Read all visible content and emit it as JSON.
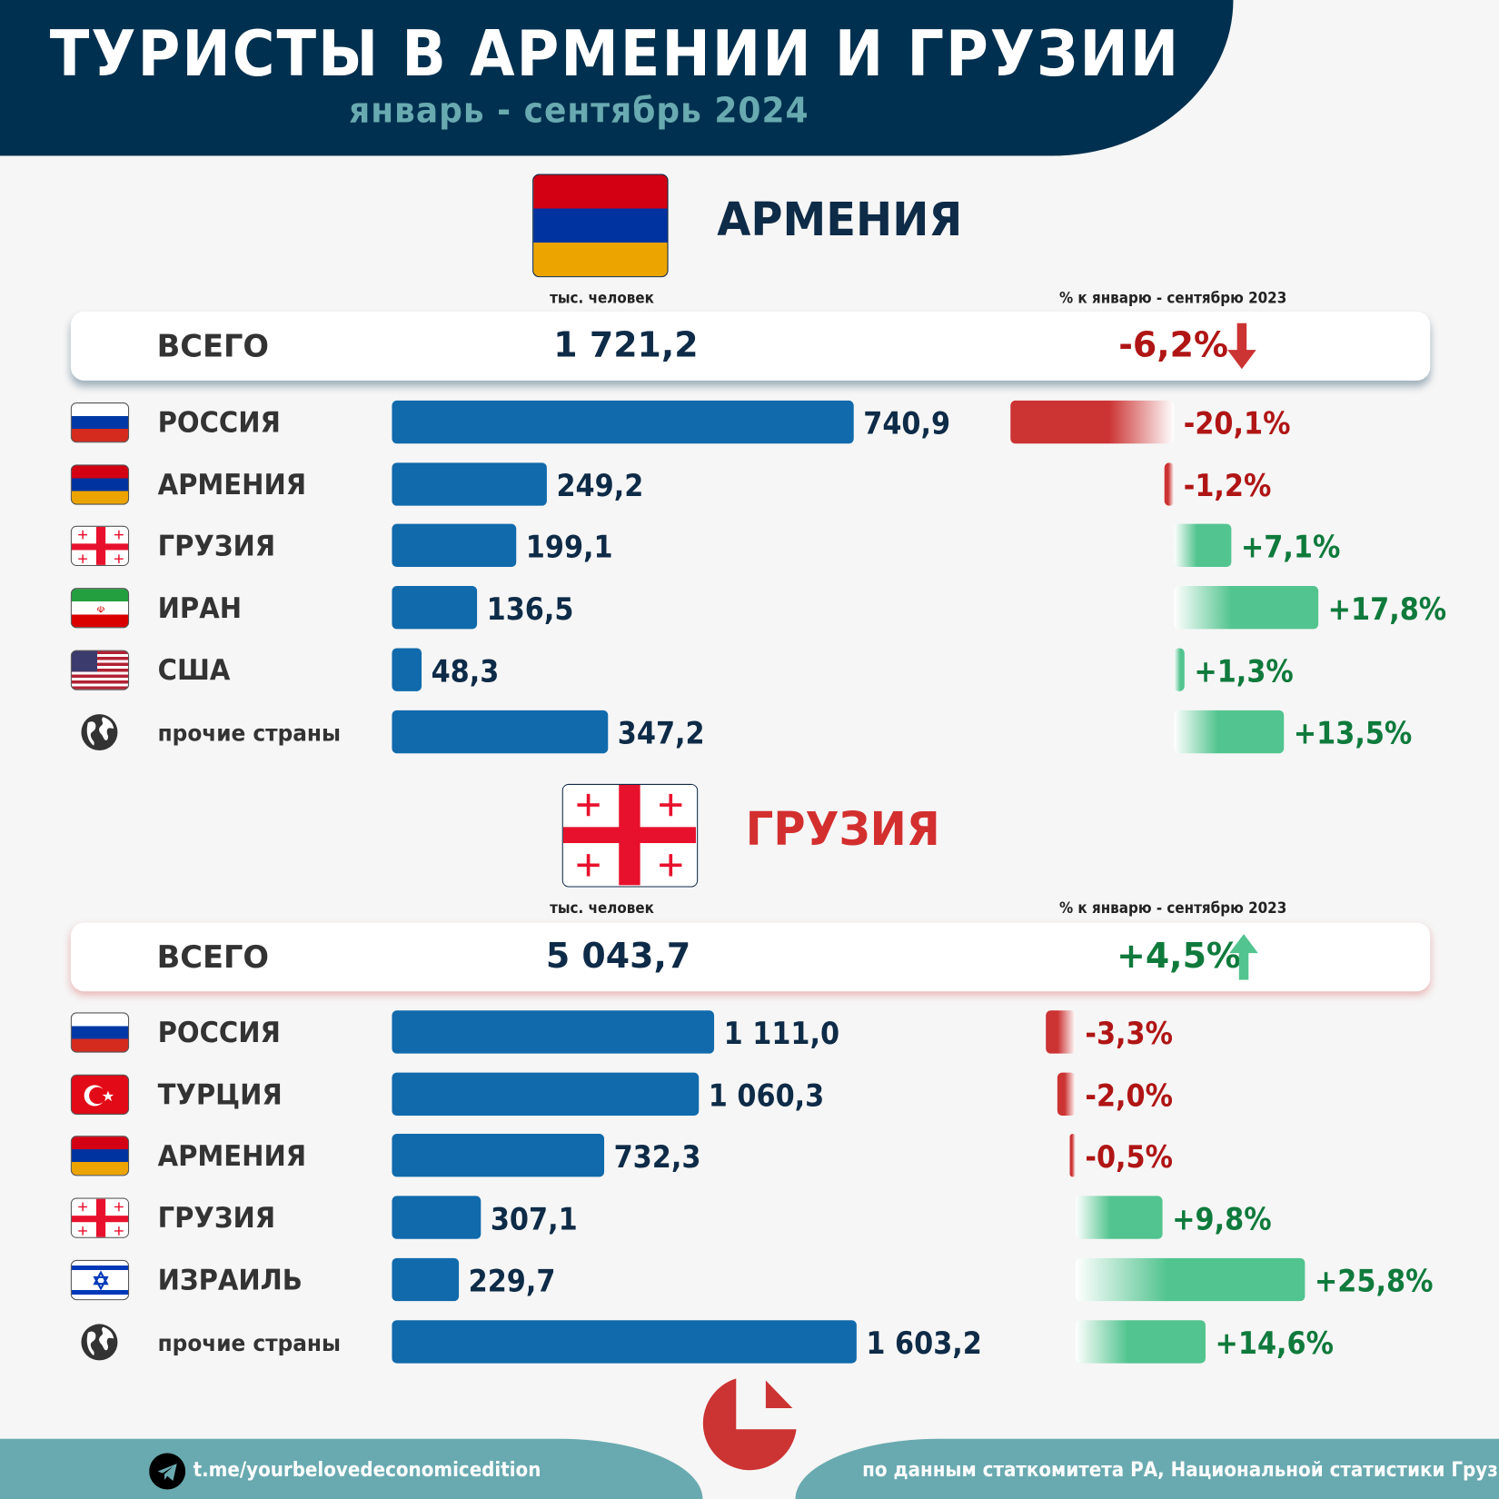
{
  "header": {
    "title": "ТУРИСТЫ В АРМЕНИИ И ГРУЗИИ",
    "subtitle": "январь - сентябрь 2024"
  },
  "colors": {
    "navy": "#00304f",
    "teal": "#69aab0",
    "bar": "#106aab",
    "neg": "#cc3333",
    "pos": "#52c48f",
    "neg_text": "#b01515",
    "pos_text": "#0f7a3c"
  },
  "armenia": {
    "title": "АРМЕНИЯ",
    "unit_label": "тыс. человек",
    "pct_label": "% к январю - сентябрю 2023",
    "total_label": "ВСЕГО",
    "total_value": "1 721,2",
    "total_pct": "-6,2%",
    "total_direction": "down",
    "rows": [
      {
        "flag": "russia",
        "name": "РОССИЯ",
        "value": 740.9,
        "value_label": "740,9",
        "pct": -20.1,
        "pct_label": "-20,1%"
      },
      {
        "flag": "armenia",
        "name": "АРМЕНИЯ",
        "value": 249.2,
        "value_label": "249,2",
        "pct": -1.2,
        "pct_label": "-1,2%"
      },
      {
        "flag": "georgia",
        "name": "ГРУЗИЯ",
        "value": 199.1,
        "value_label": "199,1",
        "pct": 7.1,
        "pct_label": "+7,1%"
      },
      {
        "flag": "iran",
        "name": "ИРАН",
        "value": 136.5,
        "value_label": "136,5",
        "pct": 17.8,
        "pct_label": "+17,8%"
      },
      {
        "flag": "usa",
        "name": "США",
        "value": 48.3,
        "value_label": "48,3",
        "pct": 1.3,
        "pct_label": "+1,3%"
      },
      {
        "flag": "globe",
        "name": "прочие страны",
        "value": 347.2,
        "value_label": "347,2",
        "pct": 13.5,
        "pct_label": "+13,5%"
      }
    ]
  },
  "georgia": {
    "title": "ГРУЗИЯ",
    "unit_label": "тыс. человек",
    "pct_label": "% к январю - сентябрю 2023",
    "total_label": "ВСЕГО",
    "total_value": "5 043,7",
    "total_pct": "+4,5%",
    "total_direction": "up",
    "rows": [
      {
        "flag": "russia",
        "name": "РОССИЯ",
        "value": 1111.0,
        "value_label": "1 111,0",
        "pct": -3.3,
        "pct_label": "-3,3%"
      },
      {
        "flag": "turkey",
        "name": "ТУРЦИЯ",
        "value": 1060.3,
        "value_label": "1 060,3",
        "pct": -2.0,
        "pct_label": "-2,0%"
      },
      {
        "flag": "armenia",
        "name": "АРМЕНИЯ",
        "value": 732.3,
        "value_label": "732,3",
        "pct": -0.5,
        "pct_label": "-0,5%"
      },
      {
        "flag": "georgia",
        "name": "ГРУЗИЯ",
        "value": 307.1,
        "value_label": "307,1",
        "pct": 9.8,
        "pct_label": "+9,8%"
      },
      {
        "flag": "israel",
        "name": "ИЗРАИЛЬ",
        "value": 229.7,
        "value_label": "229,7",
        "pct": 25.8,
        "pct_label": "+25,8%"
      },
      {
        "flag": "globe",
        "name": "прочие страны",
        "value": 1603.2,
        "value_label": "1 603,2",
        "pct": 14.6,
        "pct_label": "+14,6%"
      }
    ]
  },
  "footer": {
    "telegram": "t.me/yourbelovedeconomicedition",
    "source": "по данным статкомитета РА, Национальной статистики Грузии"
  }
}
